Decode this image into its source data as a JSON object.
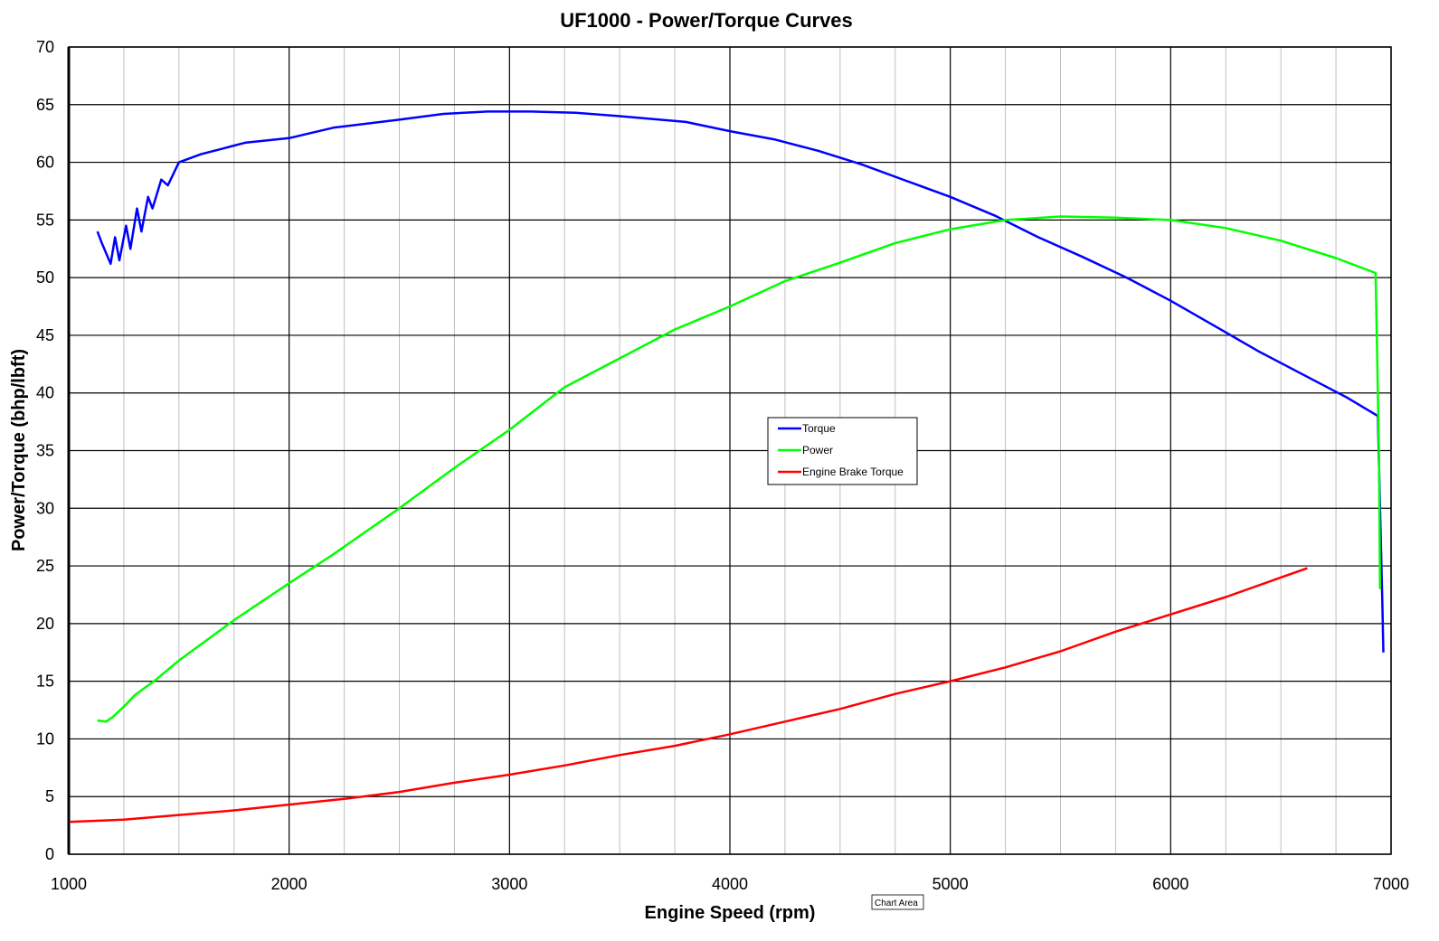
{
  "chart_data": {
    "type": "line",
    "title": "UF1000 - Power/Torque Curves",
    "xlabel": "Engine Speed (rpm)",
    "ylabel": "Power/Torque (bhp/lbft)",
    "xlim": [
      1000,
      7000
    ],
    "ylim": [
      0,
      70
    ],
    "x_ticks": [
      "1000",
      "2000",
      "3000",
      "4000",
      "5000",
      "6000",
      "7000"
    ],
    "y_ticks": [
      "0",
      "5",
      "10",
      "15",
      "20",
      "25",
      "30",
      "35",
      "40",
      "45",
      "50",
      "55",
      "60",
      "65",
      "70"
    ],
    "x_minor_step": 250,
    "grid": true,
    "legend_position": "center-right",
    "tooltip": "Chart Area",
    "series": [
      {
        "name": "Torque",
        "color": "#0000ff",
        "x": [
          1130,
          1150,
          1190,
          1210,
          1230,
          1260,
          1280,
          1310,
          1330,
          1360,
          1380,
          1420,
          1450,
          1500,
          1600,
          1700,
          1800,
          2000,
          2200,
          2500,
          2700,
          2900,
          3100,
          3300,
          3500,
          3800,
          4000,
          4200,
          4400,
          4600,
          4800,
          5000,
          5200,
          5400,
          5600,
          5800,
          6000,
          6200,
          6400,
          6600,
          6800,
          6940,
          6950,
          6960,
          6965
        ],
        "y": [
          54,
          53,
          51.2,
          53.5,
          51.5,
          54.5,
          52.5,
          56,
          54,
          57,
          56,
          58.5,
          58,
          60,
          60.7,
          61.2,
          61.7,
          62.1,
          63,
          63.7,
          64.2,
          64.4,
          64.4,
          64.3,
          64,
          63.5,
          62.7,
          62,
          61,
          59.8,
          58.4,
          57,
          55.4,
          53.5,
          51.8,
          50,
          48,
          45.8,
          43.6,
          41.6,
          39.6,
          38,
          30,
          22,
          17.5
        ]
      },
      {
        "name": "Power",
        "color": "#00ff00",
        "x": [
          1130,
          1170,
          1200,
          1250,
          1300,
          1400,
          1500,
          1750,
          2000,
          2200,
          2500,
          2750,
          3000,
          3250,
          3500,
          3750,
          4000,
          4250,
          4500,
          4750,
          5000,
          5250,
          5500,
          5750,
          6000,
          6250,
          6500,
          6750,
          6930,
          6935,
          6945,
          6950
        ],
        "y": [
          11.6,
          11.5,
          11.9,
          12.8,
          13.8,
          15.2,
          16.8,
          20.3,
          23.5,
          26,
          30,
          33.5,
          36.8,
          40.5,
          43,
          45.5,
          47.5,
          49.7,
          51.3,
          53,
          54.2,
          55,
          55.3,
          55.2,
          55,
          54.3,
          53.2,
          51.7,
          50.4,
          45,
          35,
          23
        ]
      },
      {
        "name": "Engine Brake Torque",
        "color": "#ff0000",
        "x": [
          1000,
          1250,
          1500,
          1750,
          2000,
          2250,
          2500,
          2750,
          3000,
          3250,
          3500,
          3750,
          4000,
          4250,
          4500,
          4750,
          5000,
          5250,
          5500,
          5750,
          6000,
          6250,
          6500,
          6620
        ],
        "y": [
          2.8,
          3.0,
          3.4,
          3.8,
          4.3,
          4.8,
          5.4,
          6.2,
          6.9,
          7.7,
          8.6,
          9.4,
          10.4,
          11.5,
          12.6,
          13.9,
          15,
          16.2,
          17.6,
          19.3,
          20.8,
          22.3,
          24,
          24.8
        ]
      }
    ]
  }
}
